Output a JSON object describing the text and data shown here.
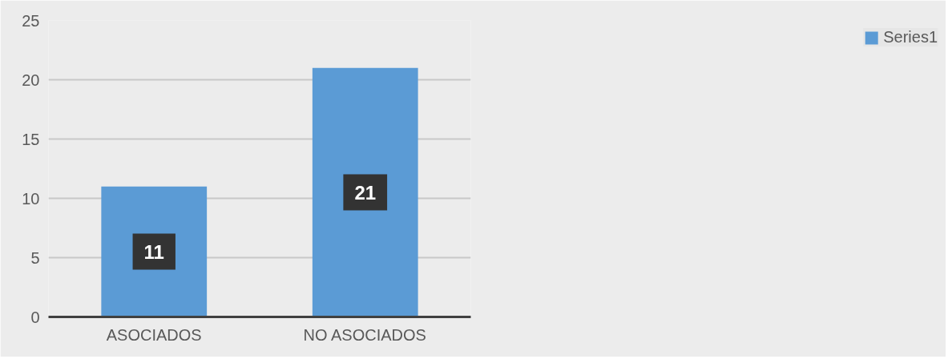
{
  "chart_data": {
    "type": "bar",
    "categories": [
      "ASOCIADOS",
      "NO ASOCIADOS"
    ],
    "series": [
      {
        "name": "Series1",
        "color": "#5b9bd5",
        "values": [
          11,
          21
        ]
      }
    ],
    "ylim": [
      0,
      25
    ],
    "yticks": [
      0,
      5,
      10,
      15,
      20,
      25
    ],
    "grid": "y",
    "legend": "right",
    "data_labels": true
  }
}
